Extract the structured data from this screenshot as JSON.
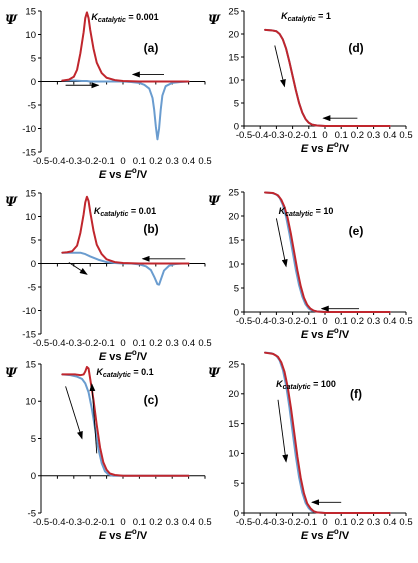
{
  "figure": {
    "colors": {
      "forward": "#6a9ccf",
      "reverse": "#c0262d",
      "axis": "#000000",
      "arrow": "#000000"
    },
    "x_axis_label": {
      "prefix": "E",
      "middle": " vs ",
      "e0": "E",
      "sup": "o",
      "suffix": "/V"
    },
    "y_axis_label": "Ψ"
  },
  "chart_data": [
    {
      "type": "line",
      "panel": "(a)",
      "k_label": {
        "k": "K",
        "sub": "catalytic",
        "value": " = 0.001"
      },
      "xlim": [
        -0.5,
        0.5
      ],
      "ylim": [
        -15,
        15
      ],
      "xticks": [
        "-0.5",
        "-0.4",
        "-0.3",
        "-0.2",
        "-0.1",
        "0",
        "0.1",
        "0.2",
        "0.3",
        "0.4",
        "0.5"
      ],
      "yticks": [
        "-15",
        "-10",
        "-5",
        "0",
        "5",
        "10",
        "15"
      ],
      "series": [
        {
          "role": "forward",
          "x": [
            -0.37,
            -0.3,
            -0.25,
            -0.22,
            -0.2,
            -0.15,
            -0.1,
            -0.05,
            0.0,
            0.05,
            0.1,
            0.13,
            0.16,
            0.18,
            0.19,
            0.2,
            0.21,
            0.22,
            0.23,
            0.24,
            0.26,
            0.3,
            0.35,
            0.4
          ],
          "y": [
            0.2,
            0.2,
            0.1,
            0.1,
            0.0,
            0.0,
            0.0,
            0.0,
            0.0,
            -0.1,
            -0.3,
            -0.7,
            -1.5,
            -3.5,
            -6,
            -9.5,
            -12.3,
            -10,
            -6,
            -3,
            -1,
            -0.3,
            -0.1,
            0.0
          ]
        },
        {
          "role": "reverse",
          "x": [
            0.4,
            0.3,
            0.2,
            0.1,
            0.0,
            -0.05,
            -0.1,
            -0.13,
            -0.16,
            -0.18,
            -0.2,
            -0.21,
            -0.22,
            -0.23,
            -0.24,
            -0.26,
            -0.28,
            -0.3,
            -0.33,
            -0.37
          ],
          "y": [
            0.0,
            0.0,
            0.0,
            0.0,
            0.1,
            0.3,
            0.8,
            1.8,
            4,
            7,
            11,
            13.5,
            14.7,
            13.5,
            10.5,
            6,
            2.5,
            1.0,
            0.4,
            0.2
          ]
        }
      ],
      "arrows": [
        {
          "from": [
            0.25,
            1.5
          ],
          "to": [
            0.06,
            1.5
          ]
        },
        {
          "from": [
            -0.35,
            -0.8
          ],
          "to": [
            -0.15,
            -0.8
          ]
        }
      ]
    },
    {
      "type": "line",
      "panel": "(b)",
      "k_label": {
        "k": "K",
        "sub": "catalytic",
        "value": " = 0.01"
      },
      "xlim": [
        -0.5,
        0.5
      ],
      "ylim": [
        -15,
        15
      ],
      "xticks": [
        "-0.5",
        "-0.4",
        "-0.3",
        "-0.2",
        "-0.1",
        "0",
        "0.1",
        "0.2",
        "0.3",
        "0.4",
        "0.5"
      ],
      "yticks": [
        "-15",
        "-10",
        "-5",
        "0",
        "5",
        "10",
        "15"
      ],
      "series": [
        {
          "role": "forward",
          "x": [
            -0.37,
            -0.3,
            -0.26,
            -0.23,
            -0.2,
            -0.15,
            -0.1,
            -0.05,
            0.0,
            0.05,
            0.1,
            0.14,
            0.17,
            0.19,
            0.21,
            0.22,
            0.23,
            0.25,
            0.28,
            0.32,
            0.36,
            0.4
          ],
          "y": [
            2.3,
            2.3,
            2.3,
            2.0,
            1.5,
            0.8,
            0.3,
            0.1,
            0.0,
            0.0,
            -0.2,
            -0.6,
            -1.4,
            -2.8,
            -4.4,
            -4.5,
            -3.5,
            -1.5,
            -0.5,
            -0.1,
            0.0,
            0.0
          ]
        },
        {
          "role": "reverse",
          "x": [
            0.4,
            0.3,
            0.2,
            0.1,
            0.0,
            -0.05,
            -0.1,
            -0.13,
            -0.16,
            -0.18,
            -0.2,
            -0.21,
            -0.22,
            -0.23,
            -0.24,
            -0.26,
            -0.28,
            -0.31,
            -0.34,
            -0.37
          ],
          "y": [
            0.0,
            0.0,
            0.0,
            0.0,
            0.1,
            0.3,
            0.9,
            2,
            4,
            7,
            11,
            13.3,
            14.2,
            13,
            10.5,
            6.5,
            3.8,
            2.6,
            2.4,
            2.3
          ]
        }
      ],
      "arrows": [
        {
          "from": [
            0.38,
            1.0
          ],
          "to": [
            0.12,
            1.0
          ]
        },
        {
          "from": [
            -0.33,
            0.2
          ],
          "to": [
            -0.22,
            -2.3
          ]
        }
      ]
    },
    {
      "type": "line",
      "panel": "(c)",
      "k_label": {
        "k": "K",
        "sub": "catalytic",
        "value": " = 0.1"
      },
      "xlim": [
        -0.5,
        0.5
      ],
      "ylim": [
        -5,
        15
      ],
      "xticks": [
        "-0.5",
        "-0.4",
        "-0.3",
        "-0.2",
        "-0.1",
        "0",
        "0.1",
        "0.2",
        "0.3",
        "0.4",
        "0.5"
      ],
      "yticks": [
        "-5",
        "0",
        "5",
        "10",
        "15"
      ],
      "series": [
        {
          "role": "forward",
          "x": [
            -0.37,
            -0.32,
            -0.28,
            -0.25,
            -0.23,
            -0.21,
            -0.19,
            -0.17,
            -0.15,
            -0.13,
            -0.11,
            -0.09,
            -0.06,
            -0.02,
            0.05,
            0.15,
            0.25,
            0.4
          ],
          "y": [
            13.6,
            13.5,
            13.3,
            13.0,
            12.4,
            11.2,
            9.0,
            6.3,
            3.6,
            1.7,
            0.6,
            0.2,
            0.0,
            0.0,
            0.0,
            0.0,
            0.0,
            0.0
          ]
        },
        {
          "role": "reverse",
          "x": [
            0.4,
            0.25,
            0.1,
            0.0,
            -0.05,
            -0.08,
            -0.1,
            -0.12,
            -0.14,
            -0.16,
            -0.18,
            -0.2,
            -0.21,
            -0.22,
            -0.23,
            -0.24,
            -0.26,
            -0.29,
            -0.33,
            -0.37
          ],
          "y": [
            0.0,
            0.0,
            0.0,
            0.0,
            0.1,
            0.3,
            0.8,
            1.8,
            3.8,
            6.8,
            10.2,
            13.0,
            14.4,
            14.6,
            14.0,
            13.6,
            13.5,
            13.6,
            13.6,
            13.6
          ]
        }
      ],
      "arrows": [
        {
          "from": [
            -0.35,
            12.0
          ],
          "to": [
            -0.25,
            5.0
          ]
        },
        {
          "from": [
            -0.16,
            3.0
          ],
          "to": [
            -0.19,
            12.3
          ]
        }
      ]
    },
    {
      "type": "line",
      "panel": "(d)",
      "k_label": {
        "k": "K",
        "sub": "catalytic",
        "value": " = 1"
      },
      "xlim": [
        -0.5,
        0.5
      ],
      "ylim": [
        0,
        25
      ],
      "xticks": [
        "-0.5",
        "-0.4",
        "-0.3",
        "-0.2",
        "-0.1",
        "0",
        "0.1",
        "0.2",
        "0.3",
        "0.4",
        "0.5"
      ],
      "yticks": [
        "0",
        "5",
        "10",
        "15",
        "20",
        "25"
      ],
      "series": [
        {
          "role": "forward",
          "x": [
            -0.37,
            -0.33,
            -0.3,
            -0.28,
            -0.26,
            -0.24,
            -0.22,
            -0.2,
            -0.18,
            -0.16,
            -0.14,
            -0.12,
            -0.1,
            -0.08,
            -0.05,
            0.0,
            0.1,
            0.25,
            0.4
          ],
          "y": [
            20.9,
            20.8,
            20.6,
            20.0,
            18.8,
            16.8,
            14.0,
            10.9,
            7.8,
            5.0,
            2.9,
            1.5,
            0.7,
            0.3,
            0.1,
            0.0,
            0.0,
            0.0,
            0.0
          ]
        },
        {
          "role": "reverse",
          "x": [
            0.4,
            0.25,
            0.1,
            0.0,
            -0.05,
            -0.08,
            -0.1,
            -0.12,
            -0.14,
            -0.16,
            -0.18,
            -0.2,
            -0.22,
            -0.24,
            -0.26,
            -0.28,
            -0.3,
            -0.33,
            -0.37
          ],
          "y": [
            0.0,
            0.0,
            0.0,
            0.0,
            0.1,
            0.3,
            0.7,
            1.5,
            2.9,
            5.0,
            7.8,
            10.9,
            14.0,
            16.8,
            18.8,
            20.0,
            20.6,
            20.8,
            20.9
          ]
        }
      ],
      "arrows": [
        {
          "from": [
            -0.31,
            17.5
          ],
          "to": [
            -0.25,
            8.6
          ]
        },
        {
          "from": [
            0.2,
            1.7
          ],
          "to": [
            -0.01,
            1.7
          ]
        }
      ]
    },
    {
      "type": "line",
      "panel": "(e)",
      "k_label": {
        "k": "K",
        "sub": "catalytic",
        "value": " = 10"
      },
      "xlim": [
        -0.5,
        0.5
      ],
      "ylim": [
        0,
        25
      ],
      "xticks": [
        "-0.5",
        "-0.4",
        "-0.3",
        "-0.2",
        "-0.1",
        "0",
        "0.1",
        "0.2",
        "0.3",
        "0.4",
        "0.5"
      ],
      "yticks": [
        "0",
        "5",
        "10",
        "15",
        "20",
        "25"
      ],
      "series": [
        {
          "role": "forward",
          "x": [
            -0.37,
            -0.33,
            -0.3,
            -0.28,
            -0.26,
            -0.24,
            -0.22,
            -0.2,
            -0.18,
            -0.16,
            -0.14,
            -0.12,
            -0.1,
            -0.08,
            -0.05,
            0.0,
            0.1,
            0.25,
            0.4
          ],
          "y": [
            24.9,
            24.8,
            24.5,
            23.8,
            22.3,
            19.8,
            16.4,
            12.6,
            8.8,
            5.6,
            3.2,
            1.6,
            0.7,
            0.3,
            0.1,
            0.0,
            0.0,
            0.0,
            0.0
          ]
        },
        {
          "role": "reverse",
          "x": [
            0.4,
            0.25,
            0.1,
            0.0,
            -0.05,
            -0.07,
            -0.09,
            -0.11,
            -0.13,
            -0.15,
            -0.17,
            -0.19,
            -0.21,
            -0.23,
            -0.25,
            -0.27,
            -0.29,
            -0.32,
            -0.37
          ],
          "y": [
            0.0,
            0.0,
            0.0,
            0.0,
            0.1,
            0.3,
            0.7,
            1.5,
            3.0,
            5.4,
            8.6,
            12.4,
            16.2,
            19.5,
            21.9,
            23.4,
            24.3,
            24.8,
            24.9
          ]
        }
      ],
      "arrows": [
        {
          "from": [
            -0.3,
            19.5
          ],
          "to": [
            -0.24,
            9.5
          ]
        },
        {
          "from": [
            0.21,
            0.7
          ],
          "to": [
            -0.02,
            0.7
          ]
        }
      ]
    },
    {
      "type": "line",
      "panel": "(f)",
      "k_label": {
        "k": "K",
        "sub": "catalytic",
        "value": " = 100"
      },
      "xlim": [
        -0.5,
        0.5
      ],
      "ylim": [
        0,
        25
      ],
      "xticks": [
        "-0.5",
        "-0.4",
        "-0.3",
        "-0.2",
        "-0.1",
        "0",
        "0.1",
        "0.2",
        "0.3",
        "0.4",
        "0.5"
      ],
      "yticks": [
        "0",
        "5",
        "10",
        "15",
        "20",
        "25"
      ],
      "series": [
        {
          "role": "forward",
          "x": [
            -0.37,
            -0.33,
            -0.3,
            -0.28,
            -0.26,
            -0.24,
            -0.22,
            -0.2,
            -0.18,
            -0.16,
            -0.14,
            -0.12,
            -0.1,
            -0.08,
            -0.05,
            0.0,
            0.1,
            0.25,
            0.4
          ],
          "y": [
            26.9,
            26.8,
            26.4,
            25.6,
            24.0,
            21.4,
            17.8,
            13.6,
            9.5,
            6.0,
            3.4,
            1.7,
            0.8,
            0.3,
            0.1,
            0.0,
            0.0,
            0.0,
            0.0
          ]
        },
        {
          "role": "reverse",
          "x": [
            0.4,
            0.25,
            0.1,
            0.0,
            -0.05,
            -0.07,
            -0.09,
            -0.11,
            -0.13,
            -0.15,
            -0.17,
            -0.19,
            -0.21,
            -0.23,
            -0.25,
            -0.27,
            -0.29,
            -0.32,
            -0.37
          ],
          "y": [
            0.0,
            0.0,
            0.0,
            0.0,
            0.1,
            0.3,
            0.8,
            1.6,
            3.3,
            5.9,
            9.4,
            13.5,
            17.6,
            21.1,
            23.7,
            25.3,
            26.2,
            26.7,
            26.9
          ]
        }
      ],
      "arrows": [
        {
          "from": [
            -0.29,
            19.0
          ],
          "to": [
            -0.24,
            8.6
          ]
        },
        {
          "from": [
            0.1,
            1.8
          ],
          "to": [
            -0.08,
            1.8
          ]
        }
      ]
    }
  ]
}
